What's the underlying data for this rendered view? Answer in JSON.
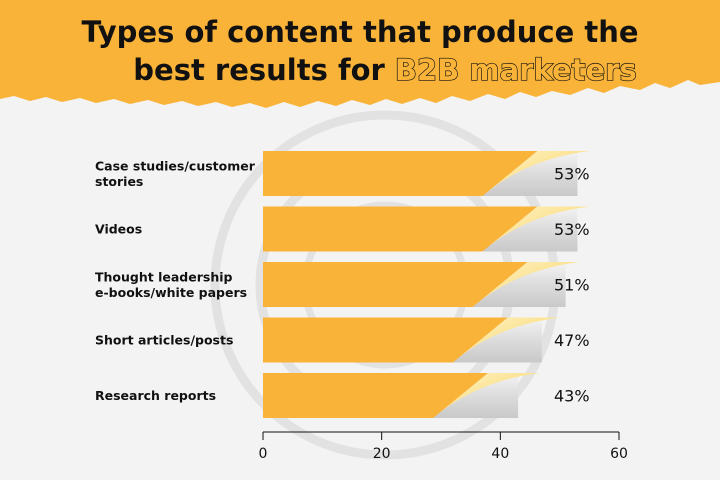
{
  "header": {
    "title_line1": "Types of content that produce the",
    "title_line2_prefix": "best results for ",
    "title_line2_highlight": "B2B marketers"
  },
  "colors": {
    "banner": "#f9b338",
    "bar": "#f9b338",
    "bar_back": "#d6d6d6",
    "curl": "#fbe08a",
    "text": "#111111",
    "background": "#f3f3f3"
  },
  "chart_data": {
    "type": "bar",
    "orientation": "horizontal",
    "title": "Types of content that produce the best results for B2B marketers",
    "categories": [
      "Case studies/customer stories",
      "Videos",
      "Thought leadership e-books/white papers",
      "Short articles/posts",
      "Research reports"
    ],
    "category_lines": [
      [
        "Case studies/customer",
        "stories"
      ],
      [
        "Videos"
      ],
      [
        "Thought leadership",
        "e-books/white papers"
      ],
      [
        "Short articles/posts"
      ],
      [
        "Research reports"
      ]
    ],
    "values": [
      53,
      53,
      51,
      47,
      43
    ],
    "value_labels": [
      "53%",
      "53%",
      "51%",
      "47%",
      "43%"
    ],
    "xlim": [
      0,
      60
    ],
    "xticks": [
      0,
      20,
      40,
      60
    ],
    "xtick_labels": [
      "0",
      "20",
      "40",
      "60"
    ],
    "grid": false,
    "legend": "none"
  }
}
